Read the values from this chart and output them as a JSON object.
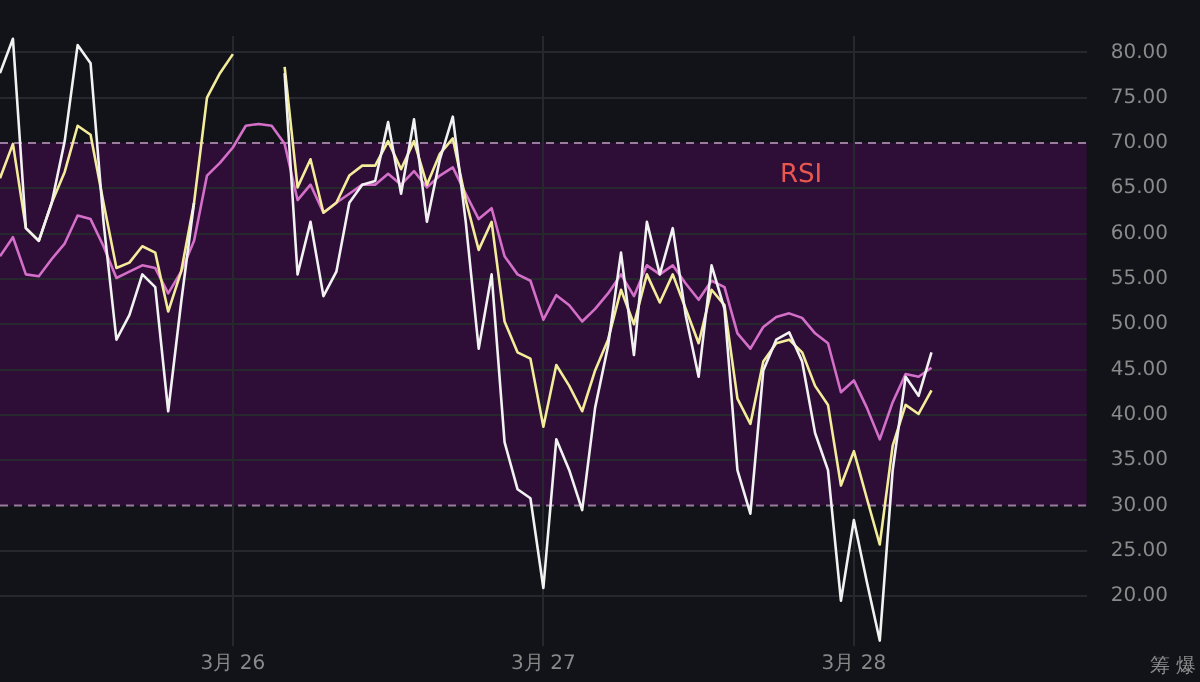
{
  "chart_data": {
    "type": "line",
    "categories": [
      null,
      null,
      null,
      null,
      null,
      null,
      null,
      null,
      null,
      null,
      null,
      null,
      null,
      null,
      null,
      null,
      null,
      null,
      "3月 26",
      null,
      null,
      null,
      null,
      null,
      null,
      null,
      null,
      null,
      null,
      null,
      null,
      null,
      null,
      null,
      null,
      null,
      null,
      null,
      null,
      null,
      null,
      null,
      "3月 27",
      null,
      null,
      null,
      null,
      null,
      null,
      null,
      null,
      null,
      null,
      null,
      null,
      null,
      null,
      null,
      null,
      null,
      null,
      null,
      null,
      null,
      null,
      null,
      "3月 28",
      null,
      null,
      null,
      null,
      null,
      null,
      null,
      null,
      null,
      null,
      null,
      null,
      null,
      null,
      null,
      null,
      null,
      null
    ],
    "series": [
      {
        "color": "#f2f2f2",
        "values": [
          77.7,
          81.5,
          60.6,
          59.2,
          63.4,
          70.2,
          80.8,
          78.8,
          61.3,
          48.3,
          51.0,
          55.5,
          54.1,
          40.4,
          52.4,
          63.4,
          null,
          null,
          null,
          null,
          null,
          null,
          77.7,
          55.5,
          61.3,
          53.1,
          55.8,
          63.4,
          65.4,
          65.8,
          72.3,
          64.4,
          72.6,
          61.3,
          68.2,
          72.9,
          61.3,
          47.3,
          55.5,
          37.0,
          31.8,
          30.8,
          20.9,
          37.3,
          33.9,
          29.5,
          40.8,
          47.6,
          57.9,
          46.6,
          61.3,
          55.5,
          60.6,
          51.0,
          44.2,
          56.5,
          51.7,
          33.9,
          29.1,
          44.9,
          48.3,
          49.1,
          45.9,
          38.0,
          33.9,
          19.5,
          28.4,
          21.6,
          15.1,
          33.9,
          44.2,
          42.1,
          46.9,
          null,
          null,
          null,
          null,
          null,
          null,
          null,
          null,
          null,
          null,
          null,
          null
        ]
      },
      {
        "color": "#f3ec9a",
        "values": [
          66.1,
          69.9,
          60.6,
          59.2,
          63.4,
          66.8,
          71.9,
          70.9,
          63.4,
          56.2,
          56.8,
          58.6,
          57.9,
          51.4,
          55.8,
          63.4,
          75.0,
          77.7,
          79.8,
          null,
          null,
          null,
          78.4,
          65.1,
          68.2,
          62.3,
          63.4,
          66.4,
          67.5,
          67.5,
          70.2,
          67.1,
          70.2,
          65.4,
          68.8,
          70.5,
          63.7,
          58.2,
          61.3,
          50.3,
          46.9,
          46.2,
          38.7,
          45.5,
          43.2,
          40.4,
          44.9,
          48.3,
          53.8,
          50.0,
          55.5,
          52.4,
          55.5,
          51.7,
          47.9,
          53.8,
          52.1,
          41.8,
          39.0,
          45.9,
          47.9,
          48.3,
          46.9,
          43.2,
          41.1,
          32.2,
          36.0,
          30.8,
          25.7,
          36.6,
          41.1,
          40.1,
          42.7,
          null,
          null,
          null,
          null,
          null,
          null,
          null,
          null,
          null,
          null,
          null,
          null
        ]
      },
      {
        "color": "#d46fc9",
        "values": [
          57.5,
          59.6,
          55.5,
          55.3,
          57.2,
          58.9,
          62.0,
          61.6,
          58.6,
          55.1,
          55.8,
          56.5,
          56.2,
          53.4,
          55.8,
          59.2,
          66.4,
          67.8,
          69.5,
          71.9,
          72.1,
          71.9,
          69.9,
          63.7,
          65.4,
          62.3,
          63.4,
          64.4,
          65.4,
          65.4,
          66.6,
          65.4,
          66.9,
          65.1,
          66.4,
          67.3,
          64.4,
          61.6,
          62.8,
          57.5,
          55.5,
          54.8,
          50.5,
          53.2,
          52.1,
          50.3,
          51.7,
          53.4,
          55.5,
          53.1,
          56.5,
          55.5,
          56.5,
          54.5,
          52.7,
          54.8,
          54.1,
          49.0,
          47.3,
          49.7,
          50.8,
          51.2,
          50.7,
          49.0,
          47.9,
          42.5,
          43.8,
          40.8,
          37.3,
          41.4,
          44.5,
          44.2,
          45.2,
          null,
          null,
          null,
          null,
          null,
          null,
          null,
          null,
          null,
          null,
          null,
          null
        ]
      }
    ],
    "ylim": [
      14.5,
      81.8
    ],
    "yticks": [
      {
        "value": 20,
        "label": "20.00"
      },
      {
        "value": 25,
        "label": "25.00"
      },
      {
        "value": 30,
        "label": "30.00"
      },
      {
        "value": 35,
        "label": "35.00"
      },
      {
        "value": 40,
        "label": "40.00"
      },
      {
        "value": 45,
        "label": "45.00"
      },
      {
        "value": 50,
        "label": "50.00"
      },
      {
        "value": 55,
        "label": "55.00"
      },
      {
        "value": 60,
        "label": "60.00"
      },
      {
        "value": 65,
        "label": "65.00"
      },
      {
        "value": 70,
        "label": "70.00"
      },
      {
        "value": 75,
        "label": "75.00"
      },
      {
        "value": 80,
        "label": "80.00"
      }
    ],
    "bands": [
      {
        "axis": "y",
        "from": 30,
        "to": 70,
        "color": "#2e0d36"
      }
    ],
    "annotations": [
      "RSI",
      "筹 爆"
    ],
    "grid": true,
    "legend": false,
    "marker": "none",
    "line_style": "solid"
  }
}
